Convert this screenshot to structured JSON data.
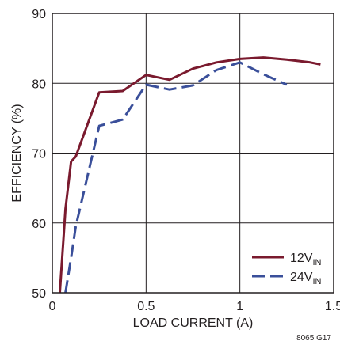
{
  "chart_data": {
    "type": "line",
    "title": "",
    "xlabel": "LOAD CURRENT (A)",
    "ylabel": "EFFICIENCY (%)",
    "xlim": [
      0,
      1.5
    ],
    "ylim": [
      50,
      90
    ],
    "x_ticks": [
      0,
      0.5,
      1,
      1.5
    ],
    "x_tick_labels": [
      "0",
      "0.5",
      "1",
      "1.5"
    ],
    "y_ticks": [
      50,
      60,
      70,
      80,
      90
    ],
    "y_tick_labels": [
      "50",
      "60",
      "70",
      "80",
      "90"
    ],
    "grid": true,
    "legend_position": "bottom-right",
    "figure_code": "8065 G17",
    "series": [
      {
        "name": "12V",
        "name_subscript": "IN",
        "color": "#7a1a2e",
        "dash": "solid",
        "x": [
          0.04,
          0.07,
          0.1,
          0.125,
          0.25,
          0.375,
          0.5,
          0.625,
          0.75,
          0.875,
          1.0,
          1.125,
          1.25,
          1.375,
          1.43
        ],
        "y": [
          50,
          62,
          68.8,
          69.5,
          78.7,
          78.9,
          81.2,
          80.5,
          82.1,
          83.0,
          83.5,
          83.7,
          83.4,
          83.0,
          82.7
        ]
      },
      {
        "name": "24V",
        "name_subscript": "IN",
        "color": "#3a4f9a",
        "dash": "dashed",
        "x": [
          0.07,
          0.1,
          0.125,
          0.25,
          0.375,
          0.5,
          0.625,
          0.75,
          0.875,
          1.0,
          1.125,
          1.25
        ],
        "y": [
          50,
          55,
          59.5,
          73.9,
          74.8,
          79.8,
          79.1,
          79.7,
          81.9,
          83.0,
          81.3,
          79.8
        ]
      }
    ]
  }
}
